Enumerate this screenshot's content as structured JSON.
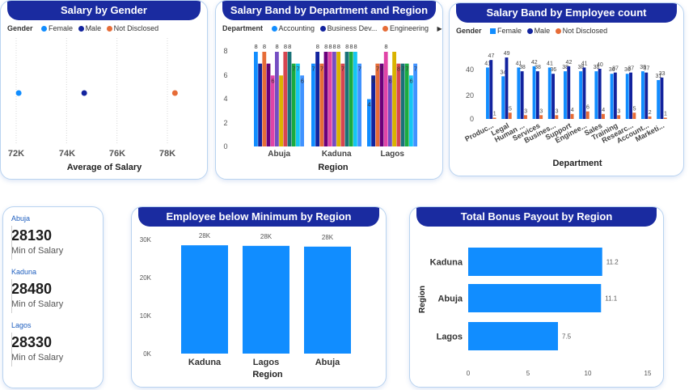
{
  "colors": {
    "female": "#118DFF",
    "male": "#12239E",
    "not_disclosed": "#E66C37",
    "title_bg": "#1a2ba0",
    "bar": "#118DFF"
  },
  "salary_by_gender": {
    "title": "Salary by Gender",
    "legend_title": "Gender",
    "legend": [
      "Female",
      "Male",
      "Not Disclosed"
    ],
    "x_ticks": [
      "72K",
      "74K",
      "76K",
      "78K"
    ],
    "xlabel": "Average of Salary"
  },
  "band_by_dept_region": {
    "title": "Salary Band by Department and Region",
    "legend_title": "Department",
    "legend": [
      "Accounting",
      "Business Dev...",
      "Engineering"
    ],
    "y_ticks": [
      "0",
      "2",
      "4",
      "6",
      "8"
    ],
    "xlabel": "Region",
    "scroll_arrow": "▶"
  },
  "band_by_emp_count": {
    "title": "Salary Band by Employee count",
    "legend_title": "Gender",
    "legend": [
      "Female",
      "Male",
      "Not Disclosed"
    ],
    "y_ticks": [
      "0",
      "20",
      "40"
    ],
    "xlabel": "Department"
  },
  "kpis": [
    {
      "region": "Abuja",
      "value": "28130",
      "caption": "Min of Salary"
    },
    {
      "region": "Kaduna",
      "value": "28480",
      "caption": "Min of Salary"
    },
    {
      "region": "Lagos",
      "value": "28330",
      "caption": "Min of Salary"
    }
  ],
  "below_min": {
    "title": "Employee below Minimum by Region",
    "y_ticks": [
      "0K",
      "10K",
      "20K",
      "30K"
    ],
    "xlabel": "Region"
  },
  "bonus": {
    "title": "Total Bonus Payout by Region",
    "ylabel": "Region",
    "x_ticks": [
      "0",
      "5",
      "10",
      "15"
    ]
  },
  "chart_data": [
    {
      "type": "scatter",
      "title": "Salary by Gender",
      "xlabel": "Average of Salary",
      "xlim": [
        71000,
        79000
      ],
      "series": [
        {
          "name": "Female",
          "x": [
            72100
          ]
        },
        {
          "name": "Male",
          "x": [
            74700
          ]
        },
        {
          "name": "Not Disclosed",
          "x": [
            78300
          ]
        }
      ]
    },
    {
      "type": "bar",
      "title": "Salary Band by Department and Region",
      "xlabel": "Region",
      "ylim": [
        0,
        8.5
      ],
      "categories": [
        "Abuja",
        "Kaduna",
        "Lagos"
      ],
      "bar_values": [
        [
          8,
          7,
          8,
          7,
          6,
          8,
          6,
          8,
          8,
          7,
          7,
          6
        ],
        [
          7,
          8,
          7,
          8,
          8,
          8,
          8,
          7,
          8,
          8,
          8,
          7
        ],
        [
          4,
          6,
          7,
          7,
          8,
          6,
          8,
          7,
          7,
          7,
          6,
          7
        ]
      ],
      "labels": [
        [
          "8",
          "7",
          "8",
          "7",
          "6",
          "8",
          "",
          "8",
          "8",
          "7",
          "7",
          "6"
        ],
        [
          "7",
          "8",
          "7",
          "8",
          "8",
          "8",
          "8",
          "7",
          "8",
          "8",
          "8",
          "7"
        ],
        [
          "4",
          "6",
          "7",
          "7",
          "8",
          "6",
          "",
          "8",
          "7",
          "7",
          "6",
          "7"
        ]
      ],
      "bar_colors": [
        "#118DFF",
        "#12239E",
        "#E66C37",
        "#6B007B",
        "#E044A7",
        "#744EC2",
        "#D9B300",
        "#D64550",
        "#197278",
        "#1AAB40",
        "#15C6F4",
        "#4092FF"
      ]
    },
    {
      "type": "bar",
      "title": "Salary Band by Employee count",
      "xlabel": "Department",
      "ylim": [
        0,
        55
      ],
      "categories": [
        "Produc...",
        "Legal",
        "Human ...",
        "Services",
        "Busines...",
        "Support",
        "Enginee...",
        "Sales",
        "Training",
        "Researc...",
        "Account...",
        "Marketi..."
      ],
      "series": [
        {
          "name": "Female",
          "values": [
            41,
            34,
            41,
            42,
            41,
            38,
            38,
            38,
            36,
            36,
            38,
            31
          ]
        },
        {
          "name": "Male",
          "values": [
            47,
            49,
            38,
            38,
            36,
            42,
            41,
            40,
            37,
            37,
            37,
            33
          ]
        },
        {
          "name": "Not Disclosed",
          "values": [
            1,
            5,
            3,
            3,
            3,
            4,
            6,
            4,
            3,
            5,
            2,
            1
          ]
        }
      ]
    },
    {
      "type": "bar",
      "title": "Employee below Minimum by Region",
      "xlabel": "Region",
      "ylim": [
        0,
        30000
      ],
      "categories": [
        "Kaduna",
        "Lagos",
        "Abuja"
      ],
      "values": [
        28480,
        28330,
        28130
      ],
      "data_labels": [
        "28K",
        "28K",
        "28K"
      ]
    },
    {
      "type": "bar",
      "orientation": "horizontal",
      "title": "Total Bonus Payout by Region",
      "ylabel": "Region",
      "xlim": [
        0,
        15
      ],
      "categories": [
        "Kaduna",
        "Abuja",
        "Lagos"
      ],
      "values": [
        11.2,
        11.1,
        7.5
      ],
      "data_labels": [
        "11.2",
        "11.1",
        "7.5"
      ]
    }
  ]
}
